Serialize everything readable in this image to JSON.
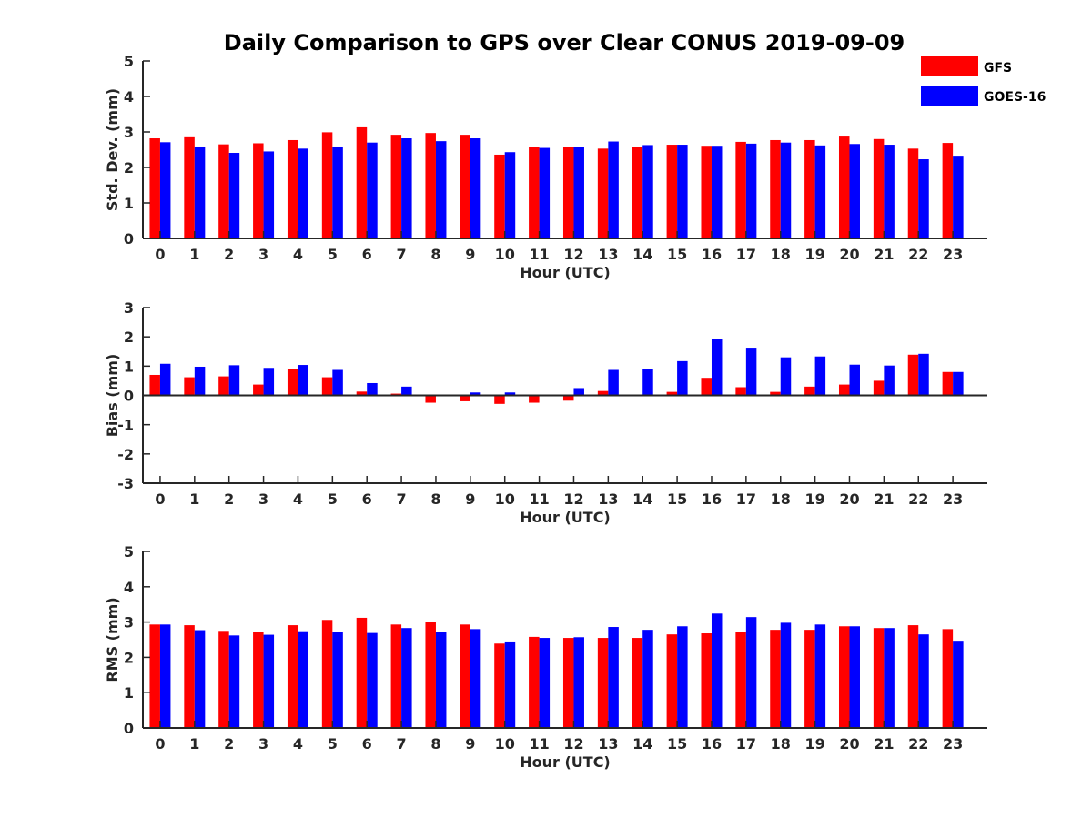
{
  "chart_data": {
    "type": "bar",
    "title": "Daily Comparison to GPS over Clear CONUS 2019-09-09",
    "legend": {
      "placement": "top-right",
      "entries": [
        {
          "name": "GFS",
          "color": "#ff0000"
        },
        {
          "name": "GOES-16",
          "color": "#0000ff"
        }
      ]
    },
    "categories": [
      "0",
      "1",
      "2",
      "3",
      "4",
      "5",
      "6",
      "7",
      "8",
      "9",
      "10",
      "11",
      "12",
      "13",
      "14",
      "15",
      "16",
      "17",
      "18",
      "19",
      "20",
      "21",
      "22",
      "23"
    ],
    "panels": [
      {
        "id": "stddev",
        "ylabel": "Std. Dev. (mm)",
        "xlabel": "Hour (UTC)",
        "ylim": [
          0,
          5
        ],
        "yticks": [
          "0",
          "1",
          "2",
          "3",
          "4",
          "5"
        ],
        "series": [
          {
            "name": "GFS",
            "color": "#ff0000",
            "values": [
              2.82,
              2.85,
              2.65,
              2.68,
              2.77,
              2.99,
              3.13,
              2.92,
              2.97,
              2.92,
              2.36,
              2.57,
              2.57,
              2.53,
              2.57,
              2.64,
              2.61,
              2.72,
              2.77,
              2.77,
              2.87,
              2.8,
              2.53,
              2.69
            ]
          },
          {
            "name": "GOES-16",
            "color": "#0000ff",
            "values": [
              2.71,
              2.59,
              2.41,
              2.45,
              2.53,
              2.59,
              2.7,
              2.82,
              2.74,
              2.82,
              2.43,
              2.55,
              2.57,
              2.73,
              2.63,
              2.64,
              2.61,
              2.67,
              2.7,
              2.62,
              2.66,
              2.64,
              2.23,
              2.33
            ]
          }
        ]
      },
      {
        "id": "bias",
        "ylabel": "Bias (mm)",
        "xlabel": "Hour (UTC)",
        "ylim": [
          -3,
          3
        ],
        "yticks": [
          "-3",
          "-2",
          "-1",
          "0",
          "1",
          "2",
          "3"
        ],
        "series": [
          {
            "name": "GFS",
            "color": "#ff0000",
            "values": [
              0.7,
              0.62,
              0.65,
              0.37,
              0.89,
              0.62,
              0.13,
              0.06,
              -0.25,
              -0.2,
              -0.29,
              -0.25,
              -0.18,
              0.15,
              0.0,
              0.12,
              0.6,
              0.28,
              0.12,
              0.3,
              0.37,
              0.5,
              1.39,
              0.8
            ]
          },
          {
            "name": "GOES-16",
            "color": "#0000ff",
            "values": [
              1.08,
              0.98,
              1.03,
              0.94,
              1.04,
              0.87,
              0.42,
              0.3,
              0.0,
              0.1,
              0.1,
              0.03,
              0.25,
              0.87,
              0.9,
              1.17,
              1.92,
              1.63,
              1.3,
              1.33,
              1.05,
              1.02,
              1.42,
              0.8
            ]
          }
        ]
      },
      {
        "id": "rms",
        "ylabel": "RMS (mm)",
        "xlabel": "Hour (UTC)",
        "ylim": [
          0,
          5
        ],
        "yticks": [
          "0",
          "1",
          "2",
          "3",
          "4",
          "5"
        ],
        "series": [
          {
            "name": "GFS",
            "color": "#ff0000",
            "values": [
              2.93,
              2.91,
              2.75,
              2.72,
              2.91,
              3.06,
              3.12,
              2.93,
              2.99,
              2.93,
              2.39,
              2.58,
              2.55,
              2.55,
              2.55,
              2.65,
              2.68,
              2.72,
              2.78,
              2.78,
              2.88,
              2.83,
              2.91,
              2.8
            ]
          },
          {
            "name": "GOES-16",
            "color": "#0000ff",
            "values": [
              2.93,
              2.77,
              2.62,
              2.64,
              2.74,
              2.72,
              2.69,
              2.83,
              2.72,
              2.8,
              2.45,
              2.55,
              2.57,
              2.86,
              2.78,
              2.88,
              3.24,
              3.14,
              2.98,
              2.93,
              2.88,
              2.83,
              2.65,
              2.47
            ]
          }
        ]
      }
    ]
  }
}
